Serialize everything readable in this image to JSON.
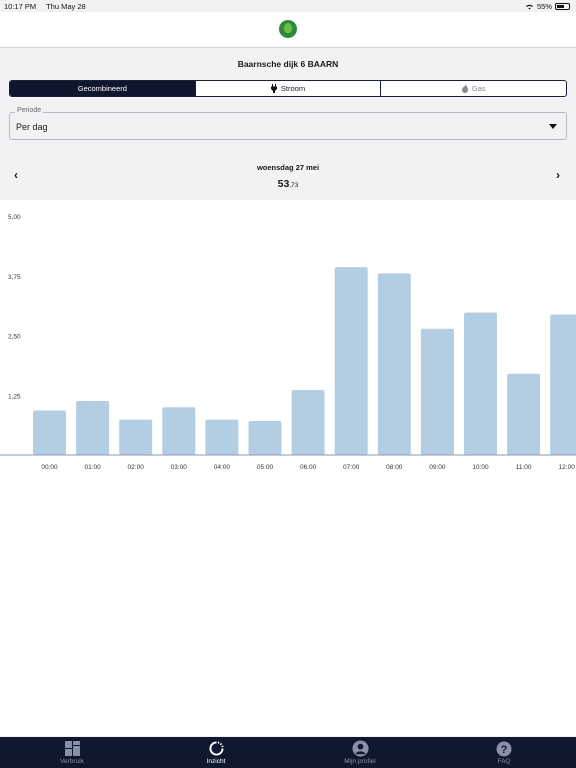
{
  "status": {
    "time": "10:17 PM",
    "date": "Thu May 28",
    "battery": "55%"
  },
  "address": "Baarnsche dijk 6 BAARN",
  "segments": [
    {
      "label": "Gecombineerd",
      "icon": ""
    },
    {
      "label": "Stroom",
      "icon": "plug-icon"
    },
    {
      "label": "Gas",
      "icon": "flame-icon"
    }
  ],
  "periode": {
    "label": "Periode",
    "value": "Per dag"
  },
  "nav": {
    "prev": "‹",
    "next": "›"
  },
  "date_label": "woensdag 27 mei",
  "total": {
    "integer": "53",
    "decimal": ",73"
  },
  "tabs": [
    {
      "label": "Verbruik",
      "icon": "grid-icon"
    },
    {
      "label": "Inzicht",
      "icon": "refresh-icon"
    },
    {
      "label": "Mijn profiel",
      "icon": "person-icon"
    },
    {
      "label": "FAQ",
      "icon": "question-icon"
    }
  ],
  "colors": {
    "bar": "#b3cde3",
    "navy": "#0f1730",
    "tabbar": "#101830"
  },
  "chart_data": {
    "type": "bar",
    "categories": [
      "00:00",
      "01:00",
      "02:00",
      "03:00",
      "04:00",
      "05:00",
      "06:00",
      "07:00",
      "08:00",
      "09:00",
      "10:00",
      "11:00",
      "12:00"
    ],
    "values": [
      0.93,
      1.13,
      0.74,
      1.0,
      0.74,
      0.71,
      1.36,
      3.93,
      3.8,
      2.64,
      2.98,
      1.7,
      2.94
    ],
    "yticks": [
      "5,00",
      "3,75",
      "2,50",
      "1,25"
    ],
    "ylim": [
      0,
      5
    ]
  }
}
